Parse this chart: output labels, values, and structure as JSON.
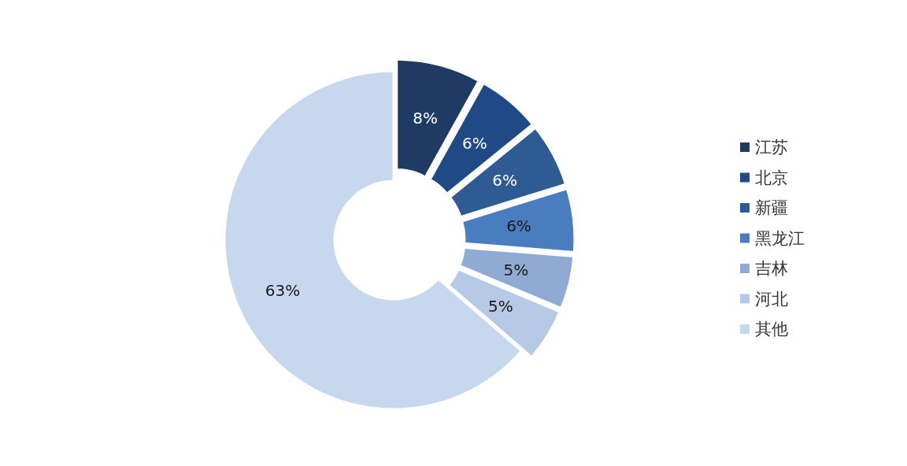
{
  "chart_data": {
    "type": "donut",
    "categories": [
      "江苏",
      "北京",
      "新疆",
      "黑龙江",
      "吉林",
      "河北",
      "其他"
    ],
    "values": [
      8,
      6,
      6,
      6,
      5,
      5,
      63
    ],
    "colors": [
      "#1f3a63",
      "#1f4a86",
      "#2f5b94",
      "#4a7cc0",
      "#8fabd4",
      "#b7cae5",
      "#c6d7ee"
    ],
    "value_labels": [
      "8%",
      "6%",
      "6%",
      "6%",
      "5%",
      "5%",
      "63%"
    ],
    "legend": "right"
  }
}
